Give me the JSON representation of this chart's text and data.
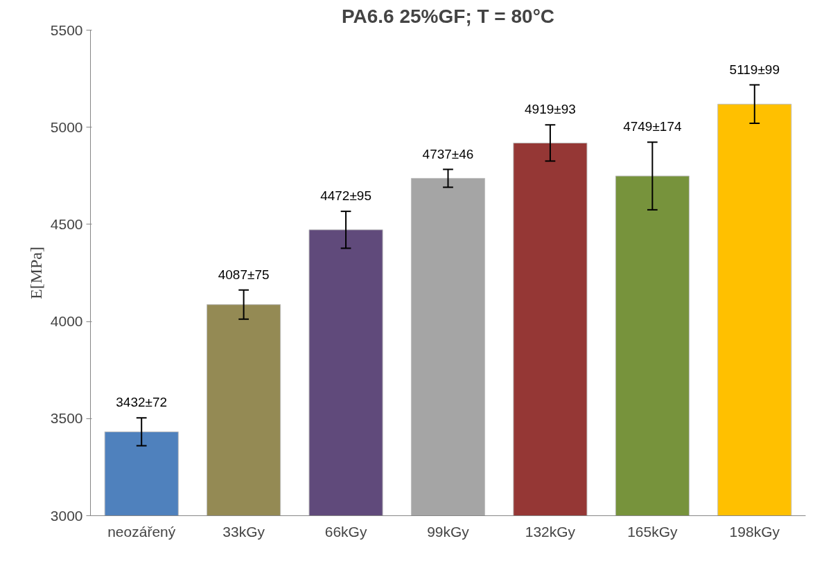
{
  "chart_data": {
    "type": "bar",
    "title": "PA6.6 25%GF; T = 80°C",
    "ylabel": "E[MPa]",
    "categories": [
      "neozářený",
      "33kGy",
      "66kGy",
      "99kGy",
      "132kGy",
      "165kGy",
      "198kGy"
    ],
    "values": [
      3432,
      4087,
      4472,
      4737,
      4919,
      4749,
      5119
    ],
    "errors": [
      72,
      75,
      95,
      46,
      93,
      174,
      99
    ],
    "value_labels": [
      "3432±72",
      "4087±75",
      "4472±95",
      "4737±46",
      "4919±93",
      "4749±174",
      "5119±99"
    ],
    "colors": [
      "#4f81bd",
      "#948a54",
      "#604a7b",
      "#a5a5a5",
      "#953735",
      "#77933c",
      "#ffc000"
    ],
    "ylim": [
      3000,
      5500
    ],
    "yticks": [
      3000,
      3500,
      4000,
      4500,
      5000,
      5500
    ],
    "grid": false
  }
}
